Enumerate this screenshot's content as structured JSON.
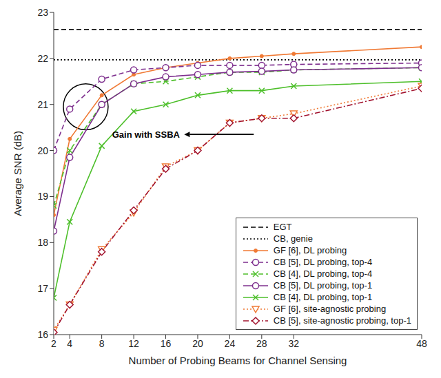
{
  "chart_data": {
    "type": "line",
    "x_label": "Number of Probing Beams for Channel Sensing",
    "y_label": "Average SNR (dB)",
    "annotation": "Gain with SSBA",
    "x": [
      2,
      4,
      8,
      12,
      16,
      20,
      24,
      28,
      32,
      48
    ],
    "xlim": [
      2,
      48
    ],
    "xticks": [
      2,
      4,
      8,
      12,
      16,
      20,
      24,
      28,
      32,
      48
    ],
    "ylim": [
      16,
      23
    ],
    "yticks": [
      16,
      17,
      18,
      19,
      20,
      21,
      22,
      23
    ],
    "grid": false,
    "legend": "lower right",
    "series": [
      {
        "name": "EGT",
        "color": "#000000",
        "line_style": "dashed",
        "marker": "none",
        "values": [
          22.63,
          22.63,
          22.63,
          22.63,
          22.63,
          22.63,
          22.63,
          22.63,
          22.63,
          22.63
        ]
      },
      {
        "name": "CB, genie",
        "color": "#000000",
        "line_style": "dotted",
        "marker": "none",
        "values": [
          21.97,
          21.97,
          21.97,
          21.97,
          21.97,
          21.97,
          21.97,
          21.97,
          21.97,
          21.97
        ]
      },
      {
        "name": "GF [6], DL probing",
        "color": "#f07a35",
        "line_style": "solid",
        "marker": "dot",
        "values": [
          18.6,
          20.25,
          21.2,
          21.65,
          21.8,
          21.9,
          22.0,
          22.05,
          22.1,
          22.25
        ]
      },
      {
        "name": "CB [5], DL probing, top-4",
        "color": "#7e2f8e",
        "line_style": "dashed",
        "marker": "circle",
        "values": [
          20.0,
          20.9,
          21.55,
          21.75,
          21.8,
          21.85,
          21.85,
          21.85,
          21.87,
          21.9
        ]
      },
      {
        "name": "CB [4], DL probing, top-4",
        "color": "#4dbf2a",
        "line_style": "dashed",
        "marker": "x",
        "values": [
          18.8,
          20.0,
          21.0,
          21.45,
          21.5,
          21.6,
          21.7,
          21.7,
          21.75,
          21.8
        ]
      },
      {
        "name": "CB [5], DL probing, top-1",
        "color": "#7e2f8e",
        "line_style": "solid",
        "marker": "circle",
        "values": [
          18.25,
          19.85,
          21.0,
          21.45,
          21.6,
          21.65,
          21.7,
          21.72,
          21.75,
          21.8
        ]
      },
      {
        "name": "CB [4], DL probing, top-1",
        "color": "#4dbf2a",
        "line_style": "solid",
        "marker": "x",
        "values": [
          16.8,
          18.45,
          20.1,
          20.85,
          21.0,
          21.2,
          21.3,
          21.3,
          21.4,
          21.5
        ]
      },
      {
        "name": "GF [6], site-agnostic probing",
        "color": "#f07a35",
        "line_style": "dotted",
        "marker": "triangle",
        "values": [
          16.1,
          16.65,
          17.85,
          18.65,
          19.65,
          20.0,
          20.6,
          20.7,
          20.8,
          21.4
        ]
      },
      {
        "name": "CB [5], site-agnostic probing, top-1",
        "color": "#a2142f",
        "line_style": "dashdot",
        "marker": "diamond",
        "values": [
          16.05,
          16.65,
          17.8,
          18.7,
          19.6,
          20.0,
          20.6,
          20.7,
          20.7,
          21.35
        ]
      }
    ]
  }
}
